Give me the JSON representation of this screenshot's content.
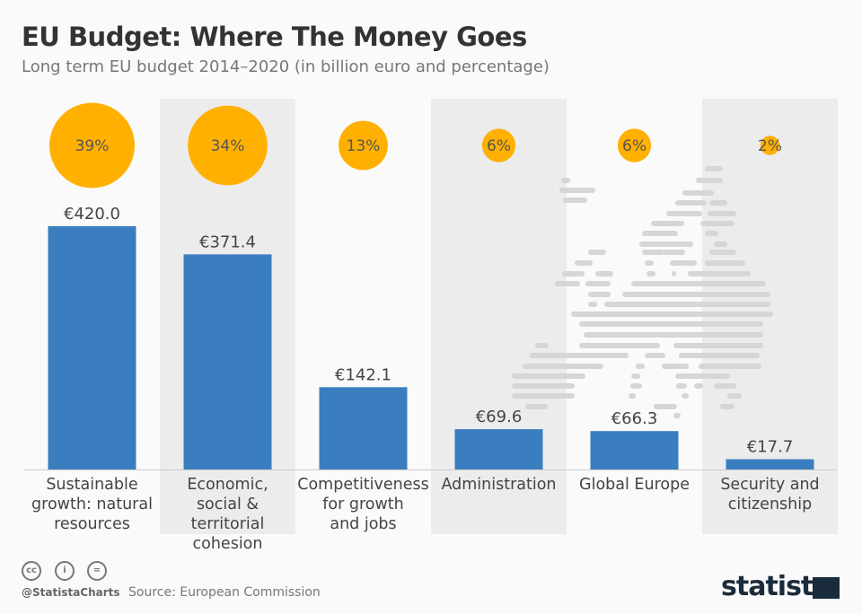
{
  "header": {
    "title": "EU Budget: Where The Money Goes",
    "subtitle": "Long term EU budget 2014–2020 (in billion euro and percentage)"
  },
  "chart_data": {
    "type": "bar",
    "categories": [
      "Sustainable growth: natural resources",
      "Economic, social & territorial cohesion",
      "Competitiveness for growth and jobs",
      "Administration",
      "Global Europe",
      "Security and citizenship"
    ],
    "category_lines": [
      [
        "Sustainable",
        "growth: natural",
        "resources"
      ],
      [
        "Economic,",
        "social & territorial",
        "cohesion"
      ],
      [
        "Competitiveness",
        "for growth",
        "and jobs"
      ],
      [
        "Administration"
      ],
      [
        "Global Europe"
      ],
      [
        "Security and",
        "citizenship"
      ]
    ],
    "values": [
      420.0,
      371.4,
      142.1,
      69.6,
      66.3,
      17.7
    ],
    "value_labels": [
      "€420.0",
      "€371.4",
      "€142.1",
      "€69.6",
      "€66.3",
      "€17.7"
    ],
    "percentages": [
      39,
      34,
      13,
      6,
      6,
      2
    ],
    "percentage_labels": [
      "39%",
      "34%",
      "13%",
      "6%",
      "6%",
      "2%"
    ],
    "unit": "billion euro",
    "bar_color": "#3a7ebf",
    "bubble_color": "#ffb000",
    "band_color": "#ececec",
    "grid": false
  },
  "footer": {
    "handle": "@StatistaCharts",
    "source": "Source: European Commission",
    "logo": "statista",
    "license_icons": [
      "cc-icon",
      "by-icon",
      "nd-icon"
    ]
  }
}
